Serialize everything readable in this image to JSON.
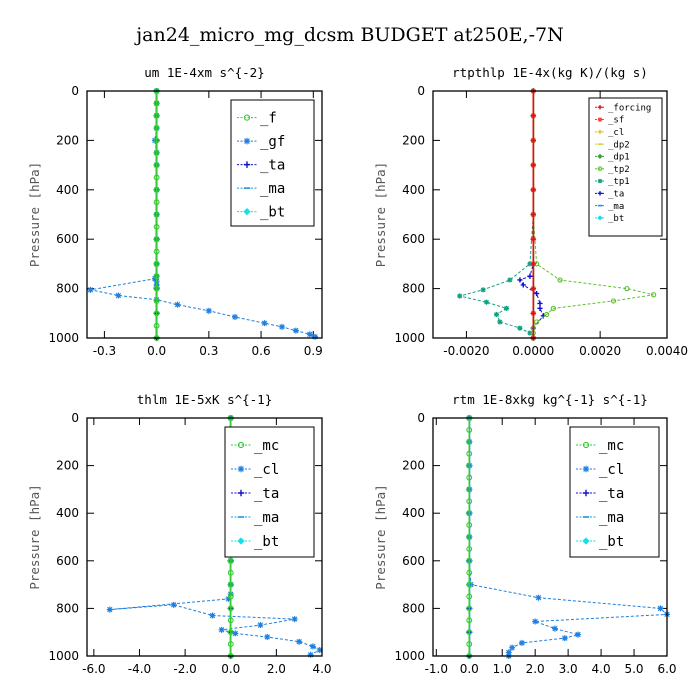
{
  "figure_title": "jan24_micro_mg_dcsm  BUDGET at250E,-7N",
  "chart_data": [
    {
      "type": "line",
      "title": "um   1E-4xm s^{-2}",
      "ylabel": "Pressure [hPa]",
      "xlim": [
        -0.4,
        0.95
      ],
      "ylim": [
        1000,
        0
      ],
      "xticks": [
        -0.3,
        0.0,
        0.3,
        0.6,
        0.9
      ],
      "xtick_labels": [
        "-0.3",
        "0.0",
        "0.3",
        "0.6",
        "0.9"
      ],
      "yticks": [
        0,
        200,
        400,
        600,
        800,
        1000
      ],
      "ytick_labels": [
        "0",
        "200",
        "400",
        "600",
        "800",
        "1000"
      ],
      "legend": "top-right",
      "series": [
        {
          "name": "_f",
          "color": "#33cc33",
          "marker": "circle",
          "x": [
            0,
            0,
            0,
            0,
            0,
            0,
            0,
            0,
            0,
            0,
            0,
            0,
            0,
            0,
            0,
            0,
            0,
            0,
            0,
            0,
            0
          ],
          "y": [
            0,
            50,
            100,
            150,
            200,
            250,
            300,
            350,
            400,
            450,
            500,
            550,
            600,
            650,
            700,
            750,
            800,
            850,
            900,
            950,
            1000
          ]
        },
        {
          "name": "_gf",
          "color": "#1f7fe0",
          "marker": "star",
          "x": [
            0,
            0,
            0,
            0,
            -0.01,
            0,
            0,
            0,
            0,
            0,
            0,
            0,
            0,
            0,
            0,
            -0.01,
            -0.38,
            -0.22,
            0,
            0.12,
            0.3,
            0.45,
            0.62,
            0.72,
            0.8,
            0.88,
            0.91
          ],
          "y": [
            0,
            50,
            100,
            150,
            200,
            250,
            300,
            400,
            500,
            600,
            700,
            750,
            770,
            785,
            795,
            760,
            805,
            828,
            845,
            865,
            890,
            915,
            940,
            955,
            970,
            985,
            995
          ]
        },
        {
          "name": "_ta",
          "color": "#1010d0",
          "marker": "plus",
          "x": [
            0,
            0,
            0,
            0,
            0,
            0,
            0
          ],
          "y": [
            0,
            200,
            400,
            600,
            800,
            900,
            1000
          ]
        },
        {
          "name": "_ma",
          "color": "#1899d8",
          "marker": "dash",
          "x": [
            0,
            0,
            0,
            0,
            0,
            0,
            0
          ],
          "y": [
            0,
            200,
            400,
            600,
            800,
            900,
            1000
          ]
        },
        {
          "name": "_bt",
          "color": "#12e0ea",
          "marker": "diamond",
          "x": [
            0,
            0,
            0,
            0,
            0,
            0,
            0,
            0,
            0,
            0,
            0
          ],
          "y": [
            0,
            100,
            200,
            300,
            400,
            500,
            600,
            700,
            800,
            900,
            1000
          ]
        }
      ]
    },
    {
      "type": "line",
      "title": "rtpthlp   1E-4x(kg K)/(kg s)",
      "ylabel": "Pressure [hPa]",
      "xlim": [
        -0.003,
        0.004
      ],
      "ylim": [
        1000,
        0
      ],
      "xticks": [
        -0.002,
        0.0,
        0.002,
        0.004
      ],
      "xtick_labels": [
        "-0.0020",
        "0.0000",
        "0.0020",
        "0.0040"
      ],
      "yticks": [
        0,
        200,
        400,
        600,
        800,
        1000
      ],
      "ytick_labels": [
        "0",
        "200",
        "400",
        "600",
        "800",
        "1000"
      ],
      "legend": "top-right",
      "series": [
        {
          "name": "_forcing",
          "color": "#e01010",
          "marker": "plus",
          "x": [
            0,
            0,
            0,
            0,
            0,
            0,
            0,
            0,
            0,
            0,
            0
          ],
          "y": [
            0,
            100,
            200,
            300,
            400,
            500,
            600,
            700,
            800,
            900,
            1000
          ]
        },
        {
          "name": "_sf",
          "color": "#ff4040",
          "marker": "star",
          "x": [
            0,
            0,
            0,
            0,
            0,
            0,
            0,
            0,
            0,
            0,
            0
          ],
          "y": [
            0,
            100,
            200,
            300,
            400,
            500,
            600,
            700,
            800,
            900,
            1000
          ]
        },
        {
          "name": "_cl",
          "color": "#e8c020",
          "marker": "plus",
          "x": [
            0,
            0,
            0,
            0,
            0,
            0,
            0,
            0,
            0,
            0,
            0
          ],
          "y": [
            0,
            100,
            200,
            300,
            400,
            500,
            600,
            700,
            800,
            900,
            1000
          ]
        },
        {
          "name": "_dp2",
          "color": "#d0d040",
          "marker": "dash",
          "x": [
            0,
            0,
            0,
            0,
            0,
            0,
            0,
            0,
            0,
            0,
            0
          ],
          "y": [
            0,
            100,
            200,
            300,
            400,
            500,
            600,
            700,
            800,
            900,
            1000
          ]
        },
        {
          "name": "_dp1",
          "color": "#3aa040",
          "marker": "diamond",
          "x": [
            0,
            0,
            0,
            0,
            0,
            0,
            0,
            0,
            0,
            0,
            0
          ],
          "y": [
            0,
            100,
            200,
            300,
            400,
            500,
            600,
            700,
            800,
            900,
            1000
          ]
        },
        {
          "name": "_tp2",
          "color": "#60c030",
          "marker": "circle",
          "x": [
            0,
            0,
            0,
            0,
            0,
            0,
            0.0001,
            0.0008,
            0.0028,
            0.0036,
            0.0024,
            0.0006,
            0.0004,
            0.0001,
            0,
            0,
            0
          ],
          "y": [
            0,
            100,
            200,
            300,
            400,
            500,
            700,
            765,
            800,
            825,
            850,
            880,
            905,
            935,
            960,
            980,
            1000
          ]
        },
        {
          "name": "_tp1",
          "color": "#10a080",
          "marker": "star",
          "x": [
            0,
            0,
            0,
            0,
            0,
            0,
            -0.0001,
            -0.0007,
            -0.0015,
            -0.0022,
            -0.0014,
            -0.0008,
            -0.0011,
            -0.001,
            -0.0004,
            -0.0001,
            0
          ],
          "y": [
            0,
            100,
            200,
            300,
            400,
            500,
            700,
            765,
            805,
            830,
            855,
            880,
            905,
            935,
            960,
            980,
            1000
          ]
        },
        {
          "name": "_ta",
          "color": "#1010d0",
          "marker": "plus",
          "x": [
            0,
            0,
            0,
            0,
            0,
            -0.0001,
            -0.0004,
            -0.0003,
            0.0001,
            0.0002,
            0.0002,
            0.0003,
            0,
            0
          ],
          "y": [
            0,
            200,
            400,
            600,
            700,
            750,
            765,
            785,
            820,
            860,
            880,
            910,
            960,
            1000
          ]
        },
        {
          "name": "_ma",
          "color": "#1899d8",
          "marker": "dash",
          "x": [
            0,
            0,
            0,
            0,
            0,
            0,
            0
          ],
          "y": [
            0,
            200,
            400,
            600,
            800,
            900,
            1000
          ]
        },
        {
          "name": "_bt",
          "color": "#12e0ea",
          "marker": "diamond",
          "x": [
            0,
            0,
            0,
            0,
            0,
            0,
            0,
            0,
            0,
            0,
            0
          ],
          "y": [
            0,
            100,
            200,
            300,
            400,
            500,
            600,
            700,
            800,
            900,
            1000
          ]
        }
      ]
    },
    {
      "type": "line",
      "title": "thlm   1E-5xK s^{-1}",
      "ylabel": "Pressure [hPa]",
      "xlim": [
        -6.3,
        4.0
      ],
      "ylim": [
        1000,
        0
      ],
      "xticks": [
        -6.0,
        -4.0,
        -2.0,
        0.0,
        2.0,
        4.0
      ],
      "xtick_labels": [
        "-6.0",
        "-4.0",
        "-2.0",
        "0.0",
        "2.0",
        "4.0"
      ],
      "yticks": [
        0,
        200,
        400,
        600,
        800,
        1000
      ],
      "ytick_labels": [
        "0",
        "200",
        "400",
        "600",
        "800",
        "1000"
      ],
      "legend": "top-right",
      "series": [
        {
          "name": "_mc",
          "color": "#33cc33",
          "marker": "circle",
          "x": [
            0,
            0,
            0,
            0,
            0,
            0,
            0,
            0,
            0,
            0,
            0,
            0,
            0,
            0,
            0,
            0,
            0,
            0,
            0,
            0,
            0
          ],
          "y": [
            0,
            50,
            100,
            150,
            200,
            250,
            300,
            350,
            400,
            450,
            500,
            550,
            600,
            650,
            700,
            750,
            800,
            850,
            900,
            950,
            1000
          ]
        },
        {
          "name": "_cl",
          "color": "#1f7fe0",
          "marker": "star",
          "x": [
            0,
            0,
            0,
            0,
            0,
            0,
            0,
            0,
            0,
            -0.1,
            -5.3,
            -2.5,
            -0.8,
            2.8,
            1.3,
            -0.4,
            0.2,
            1.6,
            3.0,
            3.6,
            3.9,
            3.5
          ],
          "y": [
            0,
            100,
            200,
            300,
            400,
            500,
            600,
            700,
            740,
            760,
            805,
            785,
            830,
            845,
            870,
            890,
            905,
            920,
            940,
            960,
            975,
            995
          ]
        },
        {
          "name": "_ta",
          "color": "#1010d0",
          "marker": "plus",
          "x": [
            0,
            0,
            0,
            0,
            0,
            0,
            0
          ],
          "y": [
            0,
            200,
            400,
            600,
            800,
            900,
            1000
          ]
        },
        {
          "name": "_ma",
          "color": "#1899d8",
          "marker": "dash",
          "x": [
            0,
            0,
            0,
            0,
            0,
            0,
            0
          ],
          "y": [
            0,
            200,
            400,
            600,
            800,
            900,
            1000
          ]
        },
        {
          "name": "_bt",
          "color": "#12e0ea",
          "marker": "diamond",
          "x": [
            0,
            0,
            0,
            0,
            0,
            0,
            0,
            0,
            0,
            0,
            0
          ],
          "y": [
            0,
            100,
            200,
            300,
            400,
            500,
            600,
            700,
            800,
            900,
            1000
          ]
        }
      ]
    },
    {
      "type": "line",
      "title": "rtm   1E-8xkg kg^{-1} s^{-1}",
      "ylabel": "Pressure [hPa]",
      "xlim": [
        -1.1,
        6.0
      ],
      "ylim": [
        1000,
        0
      ],
      "xticks": [
        -1.0,
        0.0,
        1.0,
        2.0,
        3.0,
        4.0,
        5.0,
        6.0
      ],
      "xtick_labels": [
        "-1.0",
        "0.0",
        "1.0",
        "2.0",
        "3.0",
        "4.0",
        "5.0",
        "6.0"
      ],
      "yticks": [
        0,
        200,
        400,
        600,
        800,
        1000
      ],
      "ytick_labels": [
        "0",
        "200",
        "400",
        "600",
        "800",
        "1000"
      ],
      "legend": "top-right",
      "series": [
        {
          "name": "_mc",
          "color": "#33cc33",
          "marker": "circle",
          "x": [
            0,
            0,
            0,
            0,
            0,
            0,
            0,
            0,
            0,
            0,
            0,
            0,
            0,
            0,
            0,
            0,
            0,
            0,
            0,
            0,
            0
          ],
          "y": [
            0,
            50,
            100,
            150,
            200,
            250,
            300,
            350,
            400,
            450,
            500,
            550,
            600,
            650,
            700,
            750,
            800,
            850,
            900,
            950,
            1000
          ]
        },
        {
          "name": "_cl",
          "color": "#1f7fe0",
          "marker": "star",
          "x": [
            0,
            0,
            0,
            0,
            0,
            0,
            0,
            0.05,
            2.1,
            5.8,
            6.0,
            2.0,
            2.6,
            3.3,
            2.9,
            1.6,
            1.3,
            1.2,
            1.2
          ],
          "y": [
            0,
            100,
            200,
            300,
            400,
            500,
            600,
            700,
            755,
            800,
            825,
            855,
            885,
            910,
            925,
            945,
            965,
            985,
            1000
          ]
        },
        {
          "name": "_ta",
          "color": "#1010d0",
          "marker": "plus",
          "x": [
            0,
            0,
            0,
            0,
            0,
            0,
            0
          ],
          "y": [
            0,
            200,
            400,
            600,
            800,
            900,
            1000
          ]
        },
        {
          "name": "_ma",
          "color": "#1899d8",
          "marker": "dash",
          "x": [
            0,
            0,
            0,
            0,
            0,
            0,
            0
          ],
          "y": [
            0,
            200,
            400,
            600,
            800,
            900,
            1000
          ]
        },
        {
          "name": "_bt",
          "color": "#12e0ea",
          "marker": "diamond",
          "x": [
            0,
            0,
            0,
            0,
            0,
            0,
            0,
            0,
            0,
            0,
            0
          ],
          "y": [
            0,
            100,
            200,
            300,
            400,
            500,
            600,
            700,
            800,
            900,
            1000
          ]
        }
      ]
    }
  ]
}
